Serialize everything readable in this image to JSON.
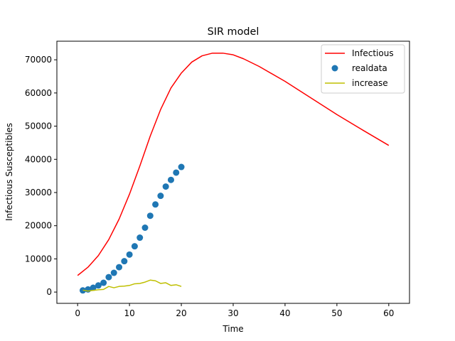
{
  "chart_data": {
    "type": "line",
    "title": "SIR model",
    "xlabel": "Time",
    "ylabel": "Infectious Susceptibles",
    "xlim": [
      -4,
      64
    ],
    "ylim": [
      -3400,
      75600
    ],
    "xticks": [
      0,
      10,
      20,
      30,
      40,
      50,
      60
    ],
    "yticks": [
      0,
      10000,
      20000,
      30000,
      40000,
      50000,
      60000,
      70000
    ],
    "grid": false,
    "legend_position": "top-right",
    "series": [
      {
        "name": "Infectious",
        "kind": "line",
        "color": "#ff0000",
        "x": [
          0,
          2,
          4,
          6,
          8,
          10,
          12,
          14,
          16,
          18,
          20,
          22,
          24,
          26,
          28,
          30,
          32,
          35,
          40,
          45,
          50,
          55,
          60
        ],
        "values": [
          5000,
          7500,
          11000,
          15800,
          22000,
          29500,
          38000,
          47000,
          55000,
          61500,
          66000,
          69300,
          71200,
          72000,
          72000,
          71500,
          70300,
          68000,
          63500,
          58500,
          53500,
          48800,
          44200
        ]
      },
      {
        "name": "realdata",
        "kind": "scatter",
        "color": "#1f77b4",
        "x": [
          1,
          2,
          3,
          4,
          5,
          6,
          7,
          8,
          9,
          10,
          11,
          12,
          13,
          14,
          15,
          16,
          17,
          18,
          19,
          20
        ],
        "values": [
          500,
          800,
          1300,
          2000,
          2800,
          4500,
          5800,
          7500,
          9300,
          11300,
          13800,
          16400,
          19400,
          23000,
          26400,
          29000,
          31800,
          33800,
          36000,
          37700
        ]
      },
      {
        "name": "increase",
        "kind": "line",
        "color": "#bfbf00",
        "x": [
          1,
          2,
          3,
          4,
          5,
          6,
          7,
          8,
          9,
          10,
          11,
          12,
          13,
          14,
          15,
          16,
          17,
          18,
          19,
          20
        ],
        "values": [
          600,
          300,
          500,
          700,
          800,
          1700,
          1300,
          1700,
          1800,
          2000,
          2500,
          2600,
          3000,
          3600,
          3400,
          2600,
          2800,
          2000,
          2200,
          1700
        ]
      }
    ]
  }
}
